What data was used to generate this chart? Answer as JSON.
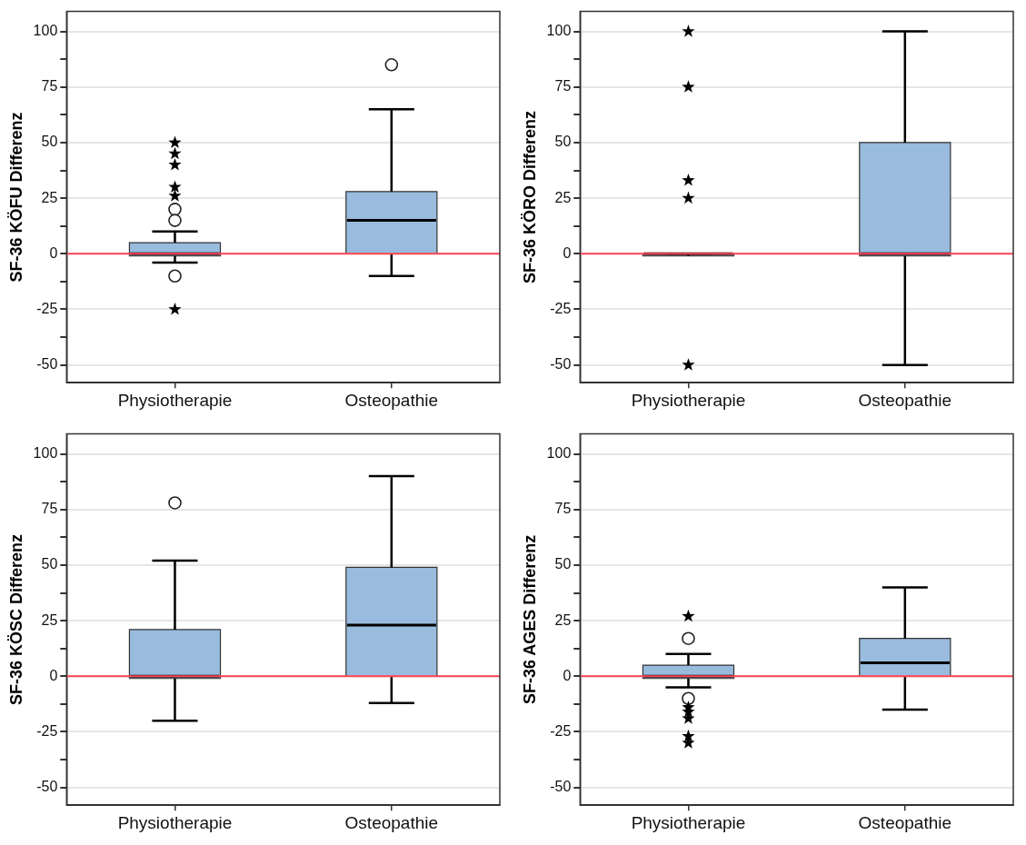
{
  "chart_data": [
    {
      "type": "box",
      "ylabel": "SF-36 KÖFU Differenz",
      "categories": [
        "Physiotherapie",
        "Osteopathie"
      ],
      "ylim": [
        -58,
        109
      ],
      "yticks": [
        -50,
        {
          "value": -37.5,
          "label": null
        },
        -25,
        {
          "value": -12.5,
          "label": null
        },
        0,
        {
          "value": 12.5,
          "label": null
        },
        25,
        {
          "value": 37.5,
          "label": null
        },
        50,
        {
          "value": 62.5,
          "label": null
        },
        75,
        {
          "value": 87.5,
          "label": null
        },
        100
      ],
      "grid": "y",
      "ref_lines": [
        {
          "axis": "y",
          "value": 0,
          "color": "#ff4455"
        }
      ],
      "series": [
        {
          "type": "box",
          "color": "#99bbdd",
          "boxes": [
            {
              "low": -4,
              "q1": -1,
              "median": 0,
              "q3": 5,
              "high": 10,
              "outliers": [
                20,
                15,
                -10
              ]
            },
            {
              "low": -10,
              "q1": 0,
              "median": 15,
              "q3": 28,
              "high": 65,
              "outliers": [
                85
              ]
            }
          ]
        },
        {
          "type": "scatter",
          "marker": "star",
          "color": "#000000",
          "x": [
            "Physiotherapie",
            "Physiotherapie",
            "Physiotherapie",
            "Physiotherapie",
            "Physiotherapie",
            "Physiotherapie"
          ],
          "values": [
            50,
            45,
            40,
            30,
            26,
            -25
          ]
        }
      ]
    },
    {
      "type": "box",
      "ylabel": "SF-36 KÖRO Differenz",
      "categories": [
        "Physiotherapie",
        "Osteopathie"
      ],
      "ylim": [
        -58,
        109
      ],
      "yticks": [
        -50,
        {
          "value": -37.5,
          "label": null
        },
        -25,
        {
          "value": -12.5,
          "label": null
        },
        0,
        {
          "value": 12.5,
          "label": null
        },
        25,
        {
          "value": 37.5,
          "label": null
        },
        50,
        {
          "value": 62.5,
          "label": null
        },
        75,
        {
          "value": 87.5,
          "label": null
        },
        100
      ],
      "grid": "y",
      "ref_lines": [
        {
          "axis": "y",
          "value": 0,
          "color": "#ff4455"
        }
      ],
      "series": [
        {
          "type": "box",
          "color": "#99bbdd",
          "boxes": [
            {
              "low": 0,
              "q1": -1,
              "median": 0,
              "q3": 0,
              "high": 0
            },
            {
              "low": -50,
              "q1": -1,
              "median": 0,
              "q3": 50,
              "high": 100
            }
          ]
        },
        {
          "type": "scatter",
          "marker": "star",
          "color": "#000000",
          "x": [
            "Physiotherapie",
            "Physiotherapie",
            "Physiotherapie",
            "Physiotherapie",
            "Physiotherapie"
          ],
          "values": [
            100,
            75,
            33,
            25,
            -50
          ]
        }
      ]
    },
    {
      "type": "box",
      "ylabel": "SF-36 KÖSC Differenz",
      "categories": [
        "Physiotherapie",
        "Osteopathie"
      ],
      "ylim": [
        -58,
        109
      ],
      "yticks": [
        -50,
        {
          "value": -37.5,
          "label": null
        },
        -25,
        {
          "value": -12.5,
          "label": null
        },
        0,
        {
          "value": 12.5,
          "label": null
        },
        25,
        {
          "value": 37.5,
          "label": null
        },
        50,
        {
          "value": 62.5,
          "label": null
        },
        75,
        {
          "value": 87.5,
          "label": null
        },
        100
      ],
      "grid": "y",
      "ref_lines": [
        {
          "axis": "y",
          "value": 0,
          "color": "#ff4455"
        }
      ],
      "series": [
        {
          "type": "box",
          "color": "#99bbdd",
          "boxes": [
            {
              "low": -20,
              "q1": -1,
              "median": 0,
              "q3": 21,
              "high": 52,
              "outliers": [
                78
              ]
            },
            {
              "low": -12,
              "q1": 0,
              "median": 23,
              "q3": 49,
              "high": 90
            }
          ]
        }
      ]
    },
    {
      "type": "box",
      "ylabel": "SF-36 AGES Differenz",
      "categories": [
        "Physiotherapie",
        "Osteopathie"
      ],
      "ylim": [
        -58,
        109
      ],
      "yticks": [
        -50,
        {
          "value": -37.5,
          "label": null
        },
        -25,
        {
          "value": -12.5,
          "label": null
        },
        0,
        {
          "value": 12.5,
          "label": null
        },
        25,
        {
          "value": 37.5,
          "label": null
        },
        50,
        {
          "value": 62.5,
          "label": null
        },
        75,
        {
          "value": 87.5,
          "label": null
        },
        100
      ],
      "grid": "y",
      "ref_lines": [
        {
          "axis": "y",
          "value": 0,
          "color": "#ff4455"
        }
      ],
      "series": [
        {
          "type": "box",
          "color": "#99bbdd",
          "boxes": [
            {
              "low": -5,
              "q1": -1,
              "median": 0,
              "q3": 5,
              "high": 10,
              "outliers": [
                17,
                -10
              ]
            },
            {
              "low": -15,
              "q1": 0,
              "median": 6,
              "q3": 17,
              "high": 40
            }
          ]
        },
        {
          "type": "scatter",
          "marker": "star",
          "color": "#000000",
          "x": [
            "Physiotherapie",
            "Physiotherapie",
            "Physiotherapie",
            "Physiotherapie",
            "Physiotherapie",
            "Physiotherapie"
          ],
          "values": [
            27,
            -14,
            -16,
            -19,
            -27,
            -30
          ]
        }
      ]
    }
  ]
}
